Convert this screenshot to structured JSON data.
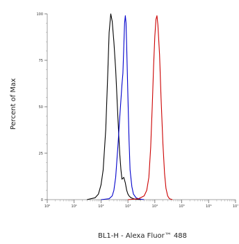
{
  "chart_data": {
    "type": "line",
    "title": "",
    "xlabel": "BL1-H - Alexa Fluor™ 488",
    "ylabel": "Percent of Max",
    "xscale": "log",
    "xlim": [
      1,
      10000000
    ],
    "ylim": [
      0,
      100
    ],
    "grid": false,
    "legend": "none",
    "x_tick_labels": [
      "10⁰",
      "10¹",
      "10²",
      "10³",
      "10⁴",
      "10⁵",
      "10⁶",
      "10⁷"
    ],
    "y_ticks": [
      0,
      25,
      50,
      75,
      100
    ],
    "y_tick_labels": [
      "0",
      "25",
      "50",
      "75",
      "100"
    ],
    "series": [
      {
        "color": "#000000",
        "x": [
          30,
          60,
          80,
          100,
          120,
          150,
          180,
          200,
          230,
          260,
          300,
          350,
          400,
          450,
          500,
          550,
          600,
          700,
          800,
          900,
          1000,
          1100,
          1300,
          1600,
          2000,
          3000
        ],
        "y": [
          0,
          1,
          3,
          8,
          16,
          38,
          70,
          90,
          100,
          96,
          85,
          70,
          52,
          36,
          24,
          16,
          11,
          12,
          9,
          5,
          3,
          2,
          1,
          0.5,
          0.2,
          0
        ]
      },
      {
        "color": "#0000cc",
        "x": [
          100,
          200,
          260,
          300,
          350,
          420,
          500,
          600,
          650,
          700,
          750,
          800,
          850,
          900,
          1000,
          1100,
          1200,
          1400,
          1600,
          2000,
          2500,
          4000
        ],
        "y": [
          0,
          0.5,
          2,
          5,
          12,
          28,
          45,
          62,
          68,
          82,
          95,
          99,
          95,
          82,
          55,
          32,
          16,
          7,
          3,
          1,
          0.4,
          0
        ]
      },
      {
        "color": "#cc0000",
        "x": [
          1000,
          2500,
          4000,
          5000,
          6000,
          7000,
          8000,
          9000,
          10000,
          11000,
          12000,
          13000,
          15000,
          17000,
          20000,
          23000,
          26000,
          30000,
          35000,
          45000
        ],
        "y": [
          0,
          0.5,
          2,
          5,
          12,
          28,
          50,
          72,
          88,
          97,
          99,
          94,
          78,
          55,
          30,
          14,
          6,
          2,
          0.5,
          0
        ]
      }
    ]
  }
}
